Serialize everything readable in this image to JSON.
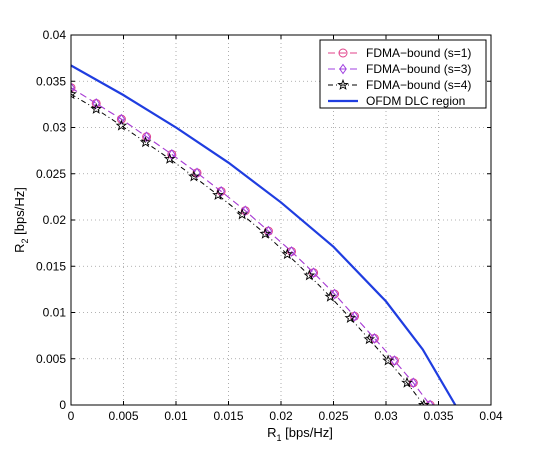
{
  "chart_data": {
    "type": "line",
    "title": "",
    "xlabel": "R",
    "xlabel_sub": "1",
    "xlabel_unit": " [bps/Hz]",
    "ylabel": "R",
    "ylabel_sub": "2",
    "ylabel_unit": " [bps/Hz]",
    "xlim": [
      0,
      0.04
    ],
    "ylim": [
      0,
      0.04
    ],
    "xticks": [
      0,
      0.005,
      0.01,
      0.015,
      0.02,
      0.025,
      0.03,
      0.035,
      0.04
    ],
    "xtick_labels": [
      "0",
      "0.005",
      "0.01",
      "0.015",
      "0.02",
      "0.025",
      "0.03",
      "0.035",
      "0.04"
    ],
    "yticks": [
      0,
      0.005,
      0.01,
      0.015,
      0.02,
      0.025,
      0.03,
      0.035,
      0.04
    ],
    "ytick_labels": [
      "0",
      "0.005",
      "0.01",
      "0.015",
      "0.02",
      "0.025",
      "0.03",
      "0.035",
      "0.04"
    ],
    "grid": true,
    "legend_position": "top-right",
    "series": [
      {
        "name": "FDMA−bound (s=1)",
        "color": "#e0408a",
        "dash": "7,4",
        "marker": "circle",
        "x": [
          0,
          0.0024,
          0.0048,
          0.0072,
          0.0096,
          0.012,
          0.0143,
          0.0166,
          0.0188,
          0.021,
          0.0231,
          0.0251,
          0.027,
          0.0289,
          0.0308,
          0.0326,
          0.0342
        ],
        "y": [
          0.0343,
          0.0326,
          0.0309,
          0.029,
          0.0271,
          0.0251,
          0.0231,
          0.021,
          0.0188,
          0.0166,
          0.0143,
          0.012,
          0.0096,
          0.0072,
          0.0048,
          0.0024,
          0
        ]
      },
      {
        "name": "FDMA−bound (s=3)",
        "color": "#a040e0",
        "dash": "7,4",
        "marker": "diamond",
        "x": [
          0,
          0.0024,
          0.0048,
          0.0072,
          0.0096,
          0.012,
          0.0143,
          0.0166,
          0.0188,
          0.021,
          0.0231,
          0.0251,
          0.027,
          0.0289,
          0.0308,
          0.0326,
          0.0342
        ],
        "y": [
          0.0343,
          0.0326,
          0.0309,
          0.029,
          0.0271,
          0.0251,
          0.0231,
          0.021,
          0.0188,
          0.0166,
          0.0143,
          0.012,
          0.0096,
          0.0072,
          0.0048,
          0.0024,
          0
        ]
      },
      {
        "name": "FDMA−bound (s=4)",
        "color": "#000000",
        "dash": "5,3,1,3",
        "marker": "star",
        "x": [
          0,
          0.0024,
          0.0048,
          0.0071,
          0.0094,
          0.0117,
          0.014,
          0.0163,
          0.0185,
          0.0206,
          0.0227,
          0.0247,
          0.0266,
          0.0284,
          0.0302,
          0.032,
          0.0336
        ],
        "y": [
          0.0336,
          0.032,
          0.0302,
          0.0284,
          0.0266,
          0.0247,
          0.0227,
          0.0206,
          0.0185,
          0.0163,
          0.014,
          0.0117,
          0.0094,
          0.0071,
          0.0048,
          0.0024,
          0
        ]
      },
      {
        "name": "OFDM DLC region",
        "color": "#1f3de0",
        "dash": "",
        "marker": "none",
        "x": [
          0,
          0.005,
          0.01,
          0.015,
          0.02,
          0.025,
          0.03,
          0.0335,
          0.0366
        ],
        "y": [
          0.0367,
          0.0335,
          0.03,
          0.0262,
          0.0219,
          0.0171,
          0.0112,
          0.006,
          0
        ]
      }
    ]
  }
}
